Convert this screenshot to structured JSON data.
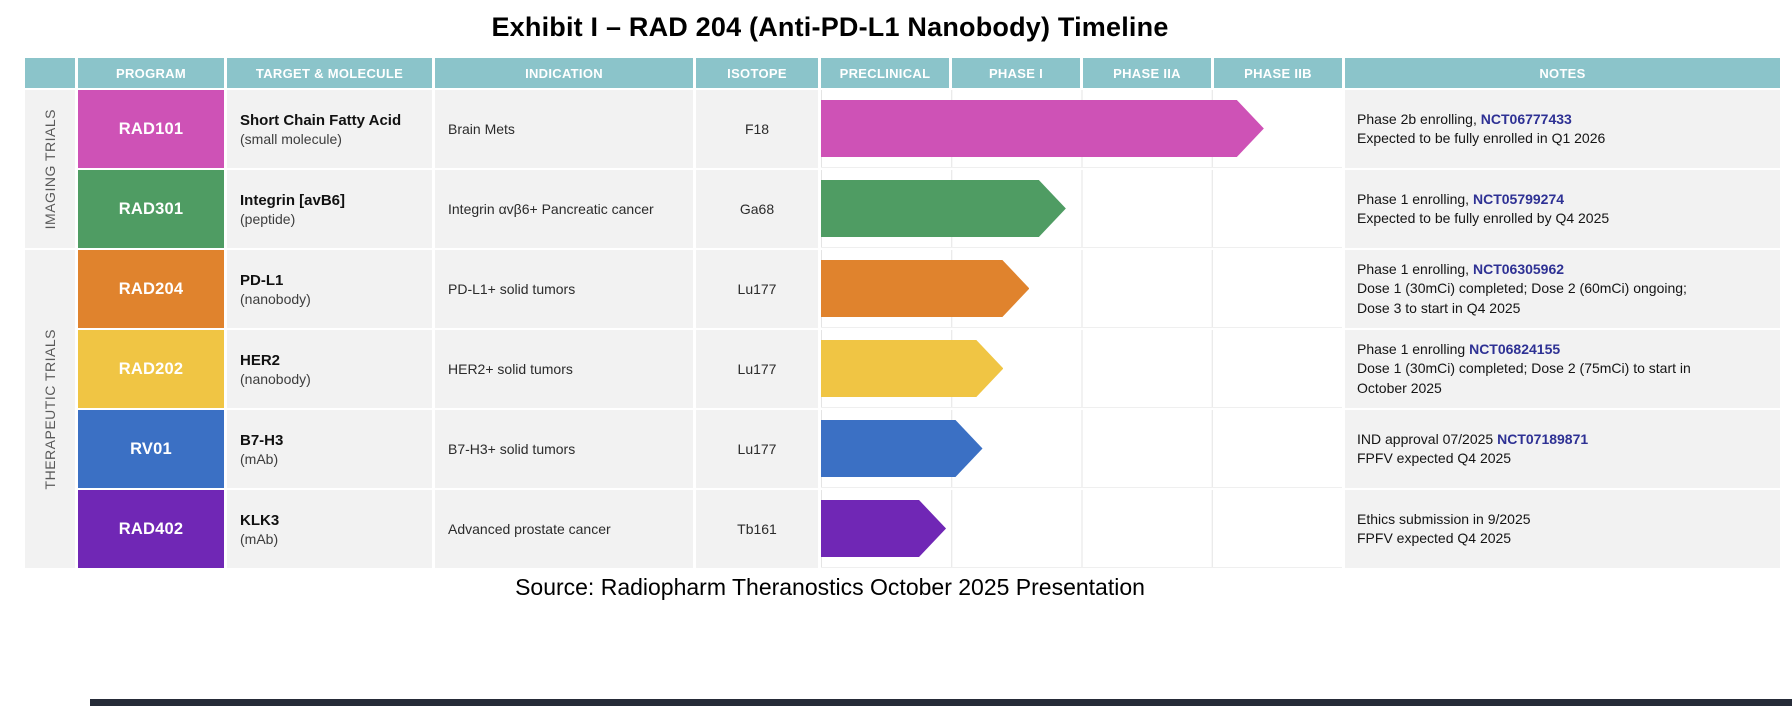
{
  "title": "Exhibit I – RAD 204 (Anti-PD-L1 Nanobody) Timeline",
  "source": "Source: Radiopharm Theranostics October 2025 Presentation",
  "header": {
    "columns": [
      "PROGRAM",
      "TARGET & MOLECULE",
      "INDICATION",
      "ISOTOPE",
      "PRECLINICAL",
      "PHASE I",
      "PHASE IIA",
      "PHASE IIB",
      "NOTES"
    ]
  },
  "groups": [
    {
      "id": "imaging",
      "label": "IMAGING TRIALS"
    },
    {
      "id": "therapeutic",
      "label": "THERAPEUTIC TRIALS"
    }
  ],
  "colors": {
    "header_bg": "#8bc4ca",
    "cell_bg": "#f2f2f2",
    "link": "#2e3194",
    "grid_line": "#e4e4e4",
    "bottom_bar": "#262b38"
  },
  "chart_data": {
    "type": "bar",
    "subtype": "gantt-timeline",
    "title": "Exhibit I – RAD 204 (Anti-PD-L1 Nanobody) Timeline",
    "categories": [
      "RAD101",
      "RAD301",
      "RAD204",
      "RAD202",
      "RV01",
      "RAD402"
    ],
    "phases": [
      "PRECLINICAL",
      "PHASE I",
      "PHASE IIA",
      "PHASE IIB"
    ],
    "values_phase_units": [
      3.4,
      1.88,
      1.6,
      1.4,
      1.24,
      0.96
    ],
    "xlim": [
      0,
      4
    ],
    "bar_colors": [
      "#ce52b6",
      "#4f9c63",
      "#e0832d",
      "#f0c544",
      "#3b70c4",
      "#7027b5"
    ],
    "legend_position": "none",
    "grid": true,
    "groups": {
      "IMAGING TRIALS": [
        "RAD101",
        "RAD301"
      ],
      "THERAPEUTIC TRIALS": [
        "RAD204",
        "RAD202",
        "RV01",
        "RAD402"
      ]
    }
  },
  "rows": [
    {
      "program": "RAD101",
      "color": "#ce52b6",
      "target": "Short Chain Fatty Acid",
      "molecule": "(small molecule)",
      "indication": "Brain Mets",
      "isotope": "F18",
      "timeline_pct": 85,
      "notes": [
        [
          {
            "t": "Phase 2b enrolling, "
          },
          {
            "t": "NCT06777433",
            "link": true
          }
        ],
        [
          {
            "t": "Expected to be fully enrolled in Q1 2026"
          }
        ]
      ]
    },
    {
      "program": "RAD301",
      "color": "#4f9c63",
      "target": "Integrin [avB6]",
      "molecule": "(peptide)",
      "indication": "Integrin αvβ6+ Pancreatic cancer",
      "isotope": "Ga68",
      "timeline_pct": 47,
      "notes": [
        [
          {
            "t": "Phase 1 enrolling, "
          },
          {
            "t": "NCT05799274",
            "link": true
          }
        ],
        [
          {
            "t": "Expected to be fully enrolled by Q4 2025"
          }
        ]
      ]
    },
    {
      "program": "RAD204",
      "color": "#e0832d",
      "target": "PD-L1",
      "molecule": "(nanobody)",
      "indication": "PD-L1+ solid tumors",
      "isotope": "Lu177",
      "timeline_pct": 40,
      "notes": [
        [
          {
            "t": "Phase 1 enrolling, "
          },
          {
            "t": "NCT06305962",
            "link": true
          }
        ],
        [
          {
            "t": "Dose 1 (30mCi) completed; Dose 2 (60mCi) ongoing;"
          }
        ],
        [
          {
            "t": "Dose 3 to start in Q4 2025"
          }
        ]
      ]
    },
    {
      "program": "RAD202",
      "color": "#f0c544",
      "target": "HER2",
      "molecule": "(nanobody)",
      "indication": "HER2+ solid tumors",
      "isotope": "Lu177",
      "timeline_pct": 35,
      "notes": [
        [
          {
            "t": "Phase 1 enrolling "
          },
          {
            "t": "NCT06824155",
            "link": true
          }
        ],
        [
          {
            "t": "Dose 1 (30mCi) completed; Dose 2 (75mCi) to start in"
          }
        ],
        [
          {
            "t": "October 2025"
          }
        ]
      ]
    },
    {
      "program": "RV01",
      "color": "#3b70c4",
      "target": "B7-H3",
      "molecule": "(mAb)",
      "indication": "B7-H3+ solid tumors",
      "isotope": "Lu177",
      "timeline_pct": 31,
      "notes": [
        [
          {
            "t": "IND approval 07/2025 "
          },
          {
            "t": "NCT07189871",
            "link": true
          }
        ],
        [
          {
            "t": "FPFV expected Q4 2025"
          }
        ]
      ]
    },
    {
      "program": "RAD402",
      "color": "#7027b5",
      "target": "KLK3",
      "molecule": "(mAb)",
      "indication": "Advanced prostate cancer",
      "isotope": "Tb161",
      "timeline_pct": 24,
      "notes": [
        [
          {
            "t": "Ethics submission in 9/2025"
          }
        ],
        [
          {
            "t": "FPFV expected Q4 2025"
          }
        ]
      ]
    }
  ]
}
